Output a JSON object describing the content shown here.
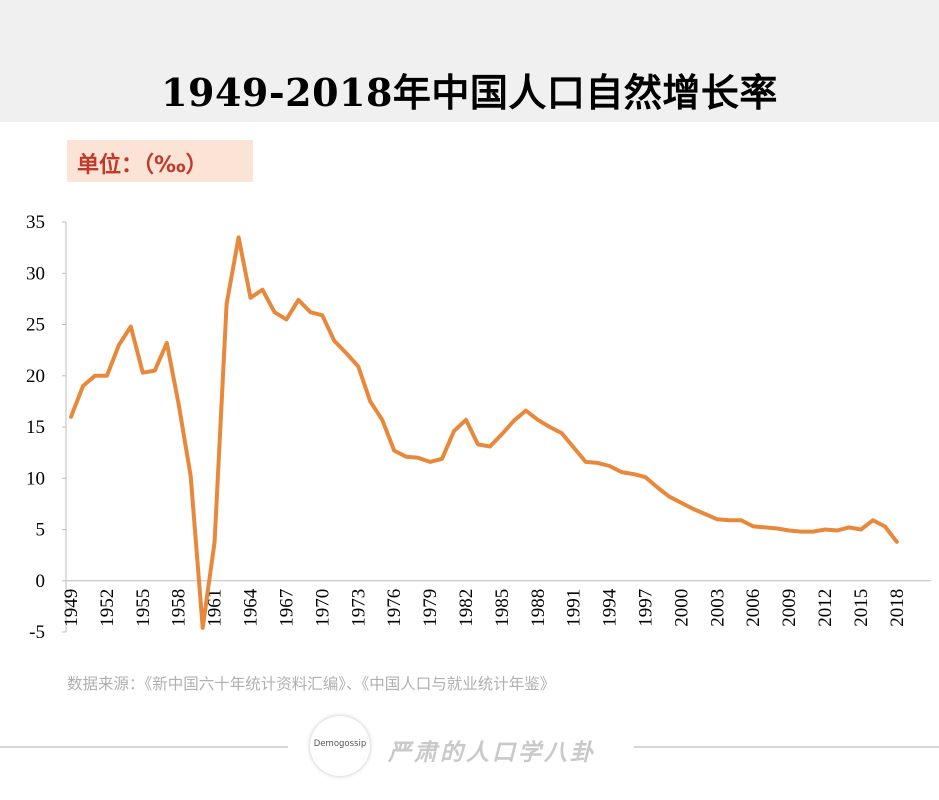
{
  "page": {
    "title": "1949-2018年中国人口自然增长率",
    "unit_label": "单位：（‰）",
    "source_note": "数据来源：《新中国六十年统计资料汇编》、《中国人口与就业统计年鉴》",
    "footer_logo_text": "Demogossip",
    "footer_brand": "严肃的人口学八卦"
  },
  "chart_data": {
    "type": "line",
    "title": "1949-2018年中国人口自然增长率",
    "ylabel": "单位：（‰）",
    "xlabel": "",
    "ylim": [
      -5,
      35
    ],
    "yticks": [
      -5,
      0,
      5,
      10,
      15,
      20,
      25,
      30,
      35
    ],
    "xticks": [
      "1949",
      "1952",
      "1955",
      "1958",
      "1961",
      "1964",
      "1967",
      "1970",
      "1973",
      "1976",
      "1979",
      "1982",
      "1985",
      "1988",
      "1991",
      "1994",
      "1997",
      "2000",
      "2003",
      "2006",
      "2009",
      "2012",
      "2015",
      "2018"
    ],
    "grid": false,
    "line_color": "#e8883a",
    "x": [
      1949,
      1950,
      1951,
      1952,
      1953,
      1954,
      1955,
      1956,
      1957,
      1958,
      1959,
      1960,
      1961,
      1962,
      1963,
      1964,
      1965,
      1966,
      1967,
      1968,
      1969,
      1970,
      1971,
      1972,
      1973,
      1974,
      1975,
      1976,
      1977,
      1978,
      1979,
      1980,
      1981,
      1982,
      1983,
      1984,
      1985,
      1986,
      1987,
      1988,
      1989,
      1990,
      1991,
      1992,
      1993,
      1994,
      1995,
      1996,
      1997,
      1998,
      1999,
      2000,
      2001,
      2002,
      2003,
      2004,
      2005,
      2006,
      2007,
      2008,
      2009,
      2010,
      2011,
      2012,
      2013,
      2014,
      2015,
      2016,
      2017,
      2018
    ],
    "series": [
      {
        "values": [
          16.0,
          19.0,
          20.0,
          20.0,
          23.0,
          24.8,
          20.3,
          20.5,
          23.2,
          17.2,
          10.2,
          -4.6,
          3.8,
          27.0,
          33.5,
          27.6,
          28.4,
          26.2,
          25.5,
          27.4,
          26.2,
          25.9,
          23.4,
          22.2,
          20.9,
          17.5,
          15.7,
          12.7,
          12.1,
          12.0,
          11.6,
          11.9,
          14.6,
          15.7,
          13.3,
          13.1,
          14.3,
          15.6,
          16.6,
          15.7,
          15.0,
          14.4,
          13.0,
          11.6,
          11.5,
          11.2,
          10.6,
          10.4,
          10.1,
          9.1,
          8.2,
          7.6,
          7.0,
          6.5,
          6.0,
          5.9,
          5.9,
          5.3,
          5.2,
          5.1,
          4.9,
          4.8,
          4.8,
          5.0,
          4.9,
          5.2,
          5.0,
          5.9,
          5.3,
          3.8
        ]
      }
    ]
  }
}
